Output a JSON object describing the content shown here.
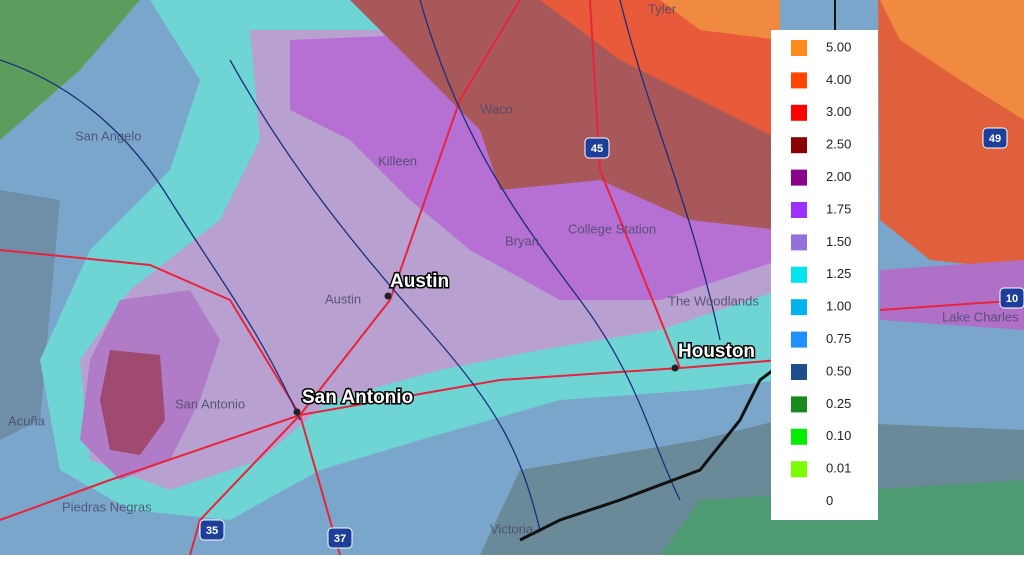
{
  "major_cities": [
    "Austin",
    "San Antonio",
    "Houston"
  ],
  "minor_labels": [
    "San Angelo",
    "Waco",
    "Killeen",
    "Bryan",
    "College Station",
    "Austin",
    "San Antonio",
    "The Woodlands",
    "Victoria",
    "Piedras Negras",
    "Acuña",
    "Lake Charles",
    "Tyler"
  ],
  "highway_shields": [
    "45",
    "35",
    "37",
    "49",
    "10"
  ],
  "legend": [
    {
      "label": "5.00",
      "color": "#ff8c1a"
    },
    {
      "label": "4.00",
      "color": "#ff4500"
    },
    {
      "label": "3.00",
      "color": "#ff0000"
    },
    {
      "label": "2.50",
      "color": "#8b0000"
    },
    {
      "label": "2.00",
      "color": "#8b008b"
    },
    {
      "label": "1.75",
      "color": "#9b30ff"
    },
    {
      "label": "1.50",
      "color": "#9370db"
    },
    {
      "label": "1.25",
      "color": "#00e5ee"
    },
    {
      "label": "1.00",
      "color": "#00b2ee"
    },
    {
      "label": "0.75",
      "color": "#1e90ff"
    },
    {
      "label": "0.50",
      "color": "#1f4e8c"
    },
    {
      "label": "0.25",
      "color": "#1a8a1a"
    },
    {
      "label": "0.10",
      "color": "#00ee00"
    },
    {
      "label": "0.01",
      "color": "#7cfc00"
    },
    {
      "label": "0",
      "color": "#ffffff"
    }
  ]
}
